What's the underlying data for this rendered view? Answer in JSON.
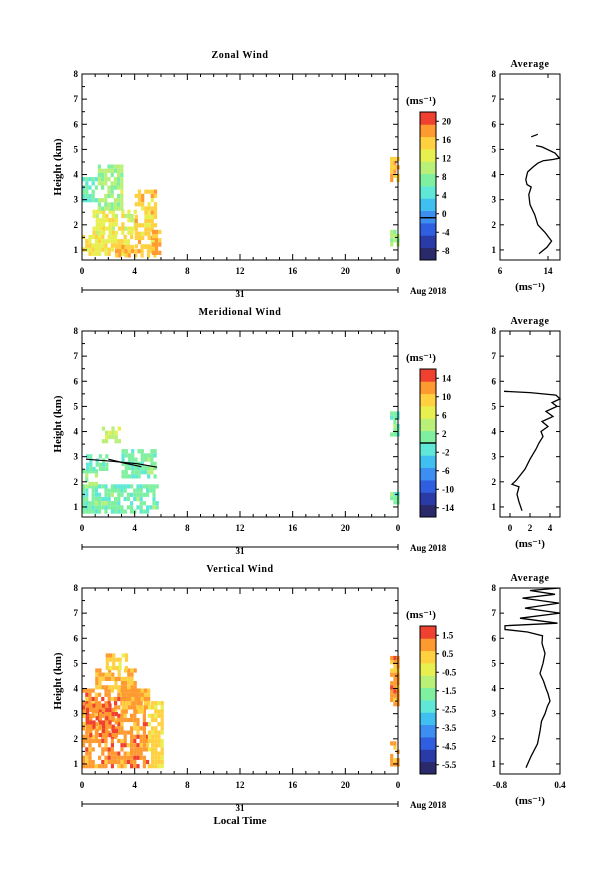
{
  "figure": {
    "date_label": "Aug 2018",
    "day_label": "31",
    "xlabel_bottom": "Local Time",
    "average_title": "Average",
    "unit_label": "(ms⁻¹)"
  },
  "chart_data": [
    {
      "type": "heatmap",
      "title": "Zonal Wind",
      "ylabel": "Height (km)",
      "xlabel": "",
      "x_ticks": [
        "0",
        "4",
        "8",
        "12",
        "16",
        "20",
        "0"
      ],
      "xlim": [
        0,
        24
      ],
      "ylim": [
        0.6,
        8
      ],
      "y_ticks": [
        "1",
        "2",
        "3",
        "4",
        "5",
        "6",
        "7",
        "8"
      ],
      "colorbar": {
        "unit": "(ms⁻¹)",
        "min": -8,
        "max": 20,
        "ticks": [
          "20",
          "16",
          "12",
          "8",
          "4",
          "0",
          "-4",
          "-8"
        ],
        "zero_line": 0
      },
      "regions": [
        {
          "t0": 0.0,
          "t1": 3.7,
          "h0": 0.85,
          "h1": 1.6,
          "v": 13
        },
        {
          "t0": 2.5,
          "t1": 5.5,
          "h0": 0.85,
          "h1": 1.2,
          "v": 15
        },
        {
          "t0": 0.8,
          "t1": 3.0,
          "h0": 1.6,
          "h1": 2.6,
          "v": 12
        },
        {
          "t0": 0.0,
          "t1": 1.2,
          "h0": 3.0,
          "h1": 3.9,
          "v": 6
        },
        {
          "t0": 1.2,
          "t1": 3.0,
          "h0": 2.6,
          "h1": 4.4,
          "v": 9
        },
        {
          "t0": 3.2,
          "t1": 4.0,
          "h0": 1.6,
          "h1": 2.6,
          "v": 11
        },
        {
          "t0": 4.0,
          "t1": 5.6,
          "h0": 1.2,
          "h1": 3.4,
          "v": 14
        },
        {
          "t0": 5.3,
          "t1": 5.9,
          "h0": 0.85,
          "h1": 1.8,
          "v": 16
        },
        {
          "t0": 23.4,
          "t1": 24.0,
          "h0": 3.7,
          "h1": 4.7,
          "v": 15
        },
        {
          "t0": 23.4,
          "t1": 24.0,
          "h0": 1.2,
          "h1": 1.8,
          "v": 9
        }
      ],
      "average": {
        "title": "Average",
        "xlim": [
          6,
          16
        ],
        "x_ticks": [
          "6",
          "14"
        ],
        "ylim": [
          0.6,
          8
        ],
        "y_ticks": [
          "1",
          "2",
          "3",
          "4",
          "5",
          "6",
          "7",
          "8"
        ],
        "profile_x": [
          12.5,
          13.8,
          14.6,
          13.5,
          12.3,
          11.8,
          11.0,
          10.8,
          11.2,
          10.5,
          10.3,
          10.6,
          11.5,
          12.3,
          13.2,
          14.8,
          15.9,
          15.2,
          13.0,
          12.0
        ],
        "profile_y": [
          0.85,
          1.1,
          1.35,
          1.7,
          2.0,
          2.4,
          2.8,
          3.2,
          3.5,
          3.6,
          3.8,
          4.1,
          4.3,
          4.45,
          4.55,
          4.6,
          4.65,
          4.85,
          5.1,
          5.15
        ],
        "segment_x": [
          11.2,
          12.3
        ],
        "segment_y": [
          5.5,
          5.6
        ]
      }
    },
    {
      "type": "heatmap",
      "title": "Meridional Wind",
      "ylabel": "Height (km)",
      "xlabel": "",
      "x_ticks": [
        "0",
        "4",
        "8",
        "12",
        "16",
        "20",
        "0"
      ],
      "xlim": [
        0,
        24
      ],
      "ylim": [
        0.6,
        8
      ],
      "y_ticks": [
        "1",
        "2",
        "3",
        "4",
        "5",
        "6",
        "7",
        "8"
      ],
      "colorbar": {
        "unit": "(ms⁻¹)",
        "min": -16,
        "max": 16,
        "ticks": [
          "14",
          "10",
          "6",
          "2",
          "-2",
          "-6",
          "-10",
          "-14"
        ],
        "zero_line": 0
      },
      "regions": [
        {
          "t0": 0.0,
          "t1": 5.6,
          "h0": 0.85,
          "h1": 1.9,
          "v": 1
        },
        {
          "t0": 0.0,
          "t1": 1.0,
          "h0": 1.9,
          "h1": 2.5,
          "v": 2
        },
        {
          "t0": 0.3,
          "t1": 1.8,
          "h0": 2.5,
          "h1": 3.1,
          "v": 0.5
        },
        {
          "t0": 3.0,
          "t1": 5.6,
          "h0": 2.2,
          "h1": 3.3,
          "v": 1
        },
        {
          "t0": 1.5,
          "t1": 2.8,
          "h0": 3.6,
          "h1": 4.2,
          "v": 5
        },
        {
          "t0": 23.4,
          "t1": 24.0,
          "h0": 3.8,
          "h1": 4.8,
          "v": 1
        },
        {
          "t0": 23.4,
          "t1": 24.0,
          "h0": 1.1,
          "h1": 1.6,
          "v": 1
        }
      ],
      "contours": [
        {
          "x": [
            0.3,
            2.2,
            4.2,
            5.7
          ],
          "y": [
            2.9,
            2.82,
            2.72,
            2.58
          ]
        },
        {
          "x": [
            2.0,
            3.2,
            4.5
          ],
          "y": [
            2.9,
            2.75,
            2.6
          ]
        }
      ],
      "average": {
        "title": "Average",
        "xlim": [
          -1,
          5
        ],
        "x_ticks": [
          "0",
          "2",
          "4"
        ],
        "ylim": [
          0.6,
          8
        ],
        "y_ticks": [
          "1",
          "2",
          "3",
          "4",
          "5",
          "6",
          "7",
          "8"
        ],
        "profile_x": [
          1.2,
          0.9,
          0.7,
          0.9,
          0.2,
          0.6,
          1.5,
          2.0,
          2.6,
          2.9,
          3.3,
          3.1,
          3.8,
          3.2,
          4.3,
          3.6,
          4.7,
          4.2,
          5.0,
          4.6,
          2.0,
          -0.6
        ],
        "profile_y": [
          0.85,
          1.2,
          1.5,
          1.8,
          1.9,
          2.05,
          2.5,
          2.9,
          3.3,
          3.55,
          3.8,
          4.0,
          4.2,
          4.4,
          4.6,
          4.8,
          5.0,
          5.15,
          5.3,
          5.45,
          5.55,
          5.6
        ]
      }
    },
    {
      "type": "heatmap",
      "title": "Vertical Wind",
      "ylabel": "Height (km)",
      "xlabel": "Local Time",
      "x_ticks": [
        "0",
        "4",
        "8",
        "12",
        "16",
        "20",
        "0"
      ],
      "xlim": [
        0,
        24
      ],
      "ylim": [
        0.6,
        8
      ],
      "y_ticks": [
        "1",
        "2",
        "3",
        "4",
        "5",
        "6",
        "7",
        "8"
      ],
      "colorbar": {
        "unit": "(ms⁻¹)",
        "min": -6.0,
        "max": 2.0,
        "ticks": [
          "1.5",
          "0.5",
          "-0.5",
          "-1.5",
          "-2.5",
          "-3.5",
          "-4.5",
          "-5.5"
        ],
        "zero_line": null
      },
      "regions": [
        {
          "t0": 0.0,
          "t1": 5.0,
          "h0": 0.9,
          "h1": 4.0,
          "v": 1.0
        },
        {
          "t0": 0.3,
          "t1": 2.5,
          "h0": 2.2,
          "h1": 3.4,
          "v": 1.3
        },
        {
          "t0": 3.0,
          "t1": 5.0,
          "h0": 3.0,
          "h1": 4.0,
          "v": 0.8
        },
        {
          "t0": 1.0,
          "t1": 4.0,
          "h0": 4.0,
          "h1": 4.8,
          "v": 0.6
        },
        {
          "t0": 1.8,
          "t1": 3.5,
          "h0": 4.8,
          "h1": 5.4,
          "v": 0.4
        },
        {
          "t0": 5.0,
          "t1": 6.0,
          "h0": 0.9,
          "h1": 3.5,
          "v": 0.2
        },
        {
          "t0": 23.4,
          "t1": 24.0,
          "h0": 3.3,
          "h1": 5.3,
          "v": 1.0
        },
        {
          "t0": 23.4,
          "t1": 24.0,
          "h0": 0.9,
          "h1": 1.9,
          "v": 0.9
        }
      ],
      "average": {
        "title": "Average",
        "xlim": [
          -0.8,
          0.4
        ],
        "x_ticks": [
          "-0.8",
          "0.4"
        ],
        "ylim": [
          0.6,
          8
        ],
        "y_ticks": [
          "1",
          "2",
          "3",
          "4",
          "5",
          "6",
          "7",
          "8"
        ],
        "profile_x": [
          -0.28,
          -0.18,
          -0.05,
          0.0,
          0.03,
          0.1,
          0.15,
          0.2,
          0.16,
          0.12,
          0.07,
          0.0,
          0.06,
          0.1,
          0.04,
          0.05,
          -0.25,
          -0.7,
          -0.7,
          0.35,
          -0.4,
          0.4,
          -0.3,
          0.38,
          -0.35,
          0.3,
          -0.2,
          0.4
        ],
        "profile_y": [
          0.85,
          1.3,
          1.8,
          2.3,
          2.7,
          3.0,
          3.3,
          3.5,
          3.8,
          4.0,
          4.3,
          4.6,
          5.0,
          5.4,
          5.8,
          6.1,
          6.25,
          6.35,
          6.5,
          6.6,
          6.8,
          7.0,
          7.2,
          7.4,
          7.6,
          7.75,
          7.9,
          8.0
        ]
      }
    }
  ]
}
